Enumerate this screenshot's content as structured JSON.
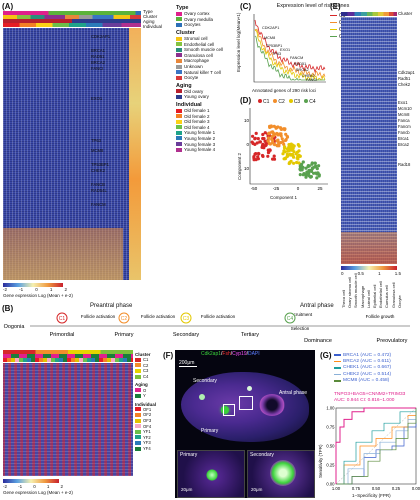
{
  "panels": {
    "A": {
      "label": "(A)",
      "track_labels": [
        "Type",
        "Cluster",
        "Aging",
        "Individual"
      ],
      "genes": [
        "CDK2AP1",
        "BRCA1",
        "RAD51",
        "BRCA2",
        "FANCI",
        "EXO1",
        "TP63",
        "MCM8",
        "TP53BP1",
        "CHEK2",
        "FANCB",
        "RAD54L",
        "FANCM"
      ],
      "legend": {
        "type_title": "Type",
        "type_items": [
          {
            "label": "Ovary cortex",
            "color": "#e0208c"
          },
          {
            "label": "Ovary medulla",
            "color": "#5bb33a"
          },
          {
            "label": "Oocytes",
            "color": "#2c6fb7"
          }
        ],
        "cluster_title": "Cluster",
        "cluster_items": [
          {
            "label": "Stromal cell",
            "color": "#f6c413"
          },
          {
            "label": "Endothelial cell",
            "color": "#84c341"
          },
          {
            "label": "Smooth muscle cell",
            "color": "#2a8f7b"
          },
          {
            "label": "Granulosa cell",
            "color": "#8c2f8f"
          },
          {
            "label": "Macrophage",
            "color": "#e8873a"
          },
          {
            "label": "Unknown",
            "color": "#9a9a9a"
          },
          {
            "label": "Natural killer T cell",
            "color": "#3a75c4"
          },
          {
            "label": "Oocyte",
            "color": "#d83a3a"
          }
        ],
        "aging_title": "Aging",
        "aging_items": [
          {
            "label": "Old ovary",
            "color": "#b8202d"
          },
          {
            "label": "Young ovary",
            "color": "#2d3c8c"
          }
        ],
        "individual_title": "Individual",
        "individual_items": [
          {
            "label": "Old female 1",
            "color": "#e51d25"
          },
          {
            "label": "Old female 2",
            "color": "#f48024"
          },
          {
            "label": "Old female 3",
            "color": "#fcd116"
          },
          {
            "label": "Old female 4",
            "color": "#6cc04a"
          },
          {
            "label": "Young female 1",
            "color": "#1fa38a"
          },
          {
            "label": "Young female 2",
            "color": "#2b7bb9"
          },
          {
            "label": "Young female 3",
            "color": "#6a3d9a"
          },
          {
            "label": "Young female 4",
            "color": "#b0308f"
          }
        ]
      },
      "scale_ticks": [
        "-2",
        "-1",
        "0",
        "1",
        "2"
      ],
      "scale_label": "Gene expression Log (Mean + e-2)"
    },
    "B": {
      "label": "(B)",
      "phase_preantral": "Preantral phase",
      "phase_antral": "Antral phase",
      "steps": [
        "Oogonia",
        "Primordial",
        "Primary",
        "Secondary",
        "Tertiary",
        "Dominance",
        "Preovulatory"
      ],
      "transitions": [
        "Follicle activation",
        "Follicle activation",
        "Follicle activation",
        "Recruitment",
        "Selection",
        "Follicle growth"
      ],
      "stage_markers": [
        {
          "label": "C1",
          "color": "#d62728"
        },
        {
          "label": "C2",
          "color": "#f28e2b"
        },
        {
          "label": "C3",
          "color": "#e3c800"
        },
        {
          "label": "C4",
          "color": "#59a14f"
        }
      ],
      "legend": {
        "cluster_title": "Cluster",
        "cluster_items": [
          {
            "label": "C1",
            "color": "#d62728"
          },
          {
            "label": "C2",
            "color": "#f28e2b"
          },
          {
            "label": "C3",
            "color": "#e6d400"
          },
          {
            "label": "C4",
            "color": "#7cbf3a"
          }
        ],
        "aging_title": "Aging",
        "aging_items": [
          {
            "label": "O",
            "color": "#e0208c"
          },
          {
            "label": "Y",
            "color": "#1b7e3b"
          }
        ],
        "individual_title": "Individual",
        "individual_items": [
          {
            "label": "OF1",
            "color": "#e51d25"
          },
          {
            "label": "OF2",
            "color": "#f48024"
          },
          {
            "label": "OF3",
            "color": "#e0c200"
          },
          {
            "label": "OF4",
            "color": "#f7a8c4"
          },
          {
            "label": "YF1",
            "color": "#6cc04a"
          },
          {
            "label": "YF2",
            "color": "#1fa38a"
          },
          {
            "label": "YF3",
            "color": "#2b7bb9"
          },
          {
            "label": "YF4",
            "color": "#1b7e3b"
          }
        ]
      },
      "scale_ticks": [
        "-2",
        "-1",
        "0",
        "1",
        "2"
      ],
      "scale_label": "Gene expression Log (Mean + e-2)"
    },
    "C": {
      "label": "(C)",
      "title": "Expression level of risk genes",
      "ylabel": "Expression level log(Mean+1)",
      "xlabel": "Annotated genes of 290 risk loci",
      "annotations": [
        "CDK2AP1",
        "MCM8",
        "TP53BP1",
        "EXO1",
        "TP63",
        "FANCM",
        "RAD51",
        "BRCA2",
        "CHEK2",
        "FANCI"
      ],
      "legend": [
        "C1",
        "C2",
        "C3",
        "C4"
      ]
    },
    "D": {
      "label": "(D)",
      "xlabel": "Component 1",
      "ylabel": "Component 2",
      "legend": [
        "C1",
        "C2",
        "C3",
        "C4"
      ]
    },
    "E": {
      "label": "(E)",
      "track_label": "Cluster",
      "genes": [
        "Cdk2ap1",
        "Rad51",
        "Chek2",
        "Exo1",
        "Mcm10",
        "Mcm8",
        "Fancа",
        "Fancm",
        "Fancb",
        "Brca1",
        "Brca2",
        "Rad18"
      ],
      "scale_ticks": [
        "0",
        "0.5",
        "1",
        "1.5"
      ],
      "cluster_items": [
        {
          "label": "Theca cell",
          "color": "#2c2c8c"
        },
        {
          "label": "Ovary stroma cell",
          "color": "#5a2d9a"
        },
        {
          "label": "Smooth muscle cell",
          "color": "#2f7fb8"
        },
        {
          "label": "Macrophage",
          "color": "#3aa0a0"
        },
        {
          "label": "Luteal cell",
          "color": "#67b65a"
        },
        {
          "label": "Epithelial cell",
          "color": "#a8c83c"
        },
        {
          "label": "Endothelial cell",
          "color": "#e0c93a"
        },
        {
          "label": "Cumulus cell",
          "color": "#ef9a3a"
        },
        {
          "label": "Granulosa cell",
          "color": "#d84a3a"
        },
        {
          "label": "Oocyte",
          "color": "#a8256c"
        }
      ]
    },
    "F": {
      "label": "(F)",
      "stain_parts": [
        {
          "text": "Cdk2ap1",
          "color": "#3ad23a"
        },
        {
          "text": "/",
          "color": "#ffffff"
        },
        {
          "text": "Fsh",
          "color": "#ff3030"
        },
        {
          "text": "/",
          "color": "#ffffff"
        },
        {
          "text": "Cyp19",
          "color": "#ff50ff"
        },
        {
          "text": "/",
          "color": "#ffffff"
        },
        {
          "text": "DAPI",
          "color": "#5a7bff"
        }
      ],
      "scalebar_main": "200μm",
      "scalebar_inset": "20μm",
      "labels": {
        "secondary": "Secondary",
        "primary": "Primary",
        "antral": "Antral phase"
      },
      "inset_labels": [
        "Primary",
        "Secondary"
      ]
    },
    "G": {
      "label": "(G)",
      "legend": [
        {
          "label": "BRCA1 (AUC = 0.472)",
          "color": "#3a5fcd"
        },
        {
          "label": "BRCA2 (AUC = 0.611)",
          "color": "#ff8c1a"
        },
        {
          "label": "CHEK1 (AUC = 0.667)",
          "color": "#1e9e9e"
        },
        {
          "label": "CHEK2 (AUC = 0.514)",
          "color": "#8ab0d8"
        },
        {
          "label": "MCM8 (AUC = 0.458)",
          "color": "#5a8a3a"
        }
      ],
      "combo_label": "TNPO3+BAG5+CNNM2+TRIM33",
      "combo_auc": "AUC: 0.944  CI: 0.816−1.000",
      "combo_color": "#e0208c",
      "xlabel": "1−Specificity (FPR)",
      "ylabel": "Sensitivity (TPR)",
      "xticks": [
        "1.00",
        "0.75",
        "0.50",
        "0.25",
        "0.00"
      ],
      "yticks": [
        "0.00",
        "0.25",
        "0.50",
        "0.75",
        "1.00"
      ]
    }
  },
  "chart_data": [
    {
      "type": "line",
      "title": "Expression level of risk genes",
      "xlabel": "Annotated genes of 290 risk loci",
      "ylabel": "Expression level log(Mean+1)",
      "ylim": [
        0,
        12
      ],
      "series": [
        {
          "name": "C1",
          "color": "#d62728"
        },
        {
          "name": "C2",
          "color": "#f28e2b"
        },
        {
          "name": "C3",
          "color": "#e3c800"
        },
        {
          "name": "C4",
          "color": "#59a14f"
        }
      ]
    },
    {
      "type": "scatter",
      "xlabel": "Component 1",
      "ylabel": "Component 2",
      "xticks": [
        -50,
        -25,
        0,
        25
      ],
      "yticks": [
        -10,
        0,
        10
      ],
      "series": [
        {
          "name": "C1",
          "color": "#d62728"
        },
        {
          "name": "C2",
          "color": "#f28e2b"
        },
        {
          "name": "C3",
          "color": "#e3c800"
        },
        {
          "name": "C4",
          "color": "#59a14f"
        }
      ]
    },
    {
      "type": "line",
      "xlabel": "1−Specificity (FPR)",
      "ylabel": "Sensitivity (TPR)",
      "xticks": [
        "1.00",
        "0.75",
        "0.50",
        "0.25",
        "0.00"
      ],
      "yticks": [
        "0.00",
        "0.25",
        "0.50",
        "0.75",
        "1.00"
      ],
      "series": [
        {
          "name": "BRCA1 (AUC = 0.472)",
          "color": "#3a5fcd"
        },
        {
          "name": "BRCA2 (AUC = 0.611)",
          "color": "#ff8c1a"
        },
        {
          "name": "CHEK1 (AUC = 0.667)",
          "color": "#1e9e9e"
        },
        {
          "name": "CHEK2 (AUC = 0.514)",
          "color": "#8ab0d8"
        },
        {
          "name": "MCM8 (AUC = 0.458)",
          "color": "#5a8a3a"
        },
        {
          "name": "TNPO3+BAG5+CNNM2+TRIM33",
          "color": "#e0208c"
        }
      ]
    }
  ]
}
